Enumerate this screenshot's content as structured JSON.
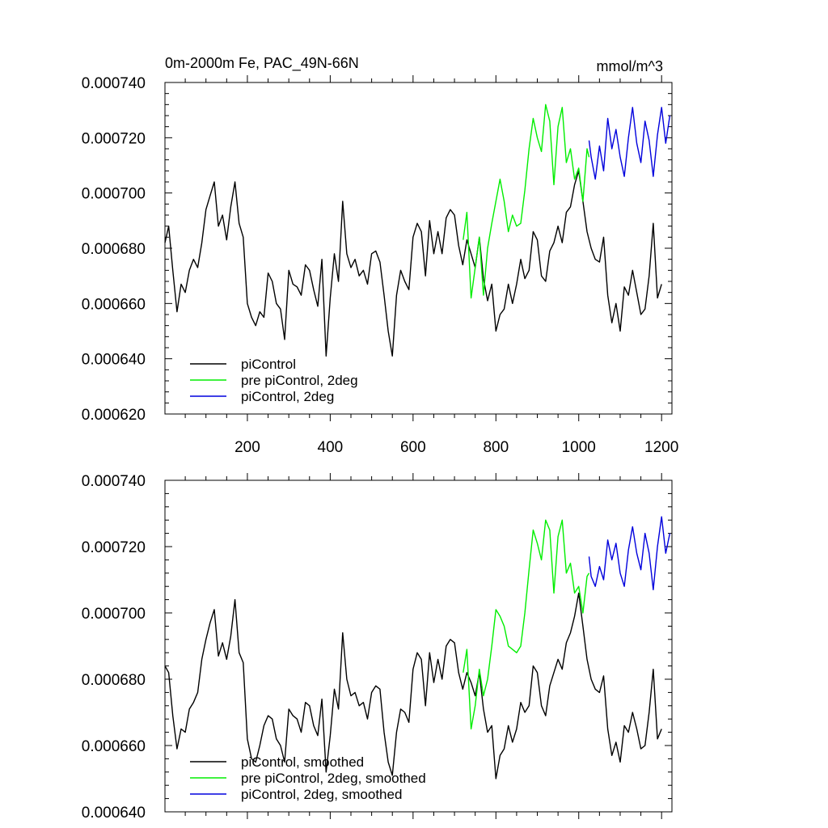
{
  "colors": {
    "piControl": "#000000",
    "pre_piControl_2deg": "#00ee00",
    "piControl_2deg": "#0000dd"
  },
  "top": {
    "title_left": "0m-2000m Fe, PAC_49N-66N",
    "title_right": "mmol/m^3",
    "y_ticks": [
      "0.000620",
      "0.000640",
      "0.000660",
      "0.000680",
      "0.000700",
      "0.000720",
      "0.000740"
    ],
    "x_ticks": [
      "200",
      "400",
      "600",
      "800",
      "1000",
      "1200"
    ],
    "legend": [
      "piControl",
      "pre piControl, 2deg",
      "piControl, 2deg"
    ]
  },
  "bottom": {
    "y_ticks": [
      "0.000640",
      "0.000660",
      "0.000680",
      "0.000700",
      "0.000720",
      "0.000740"
    ],
    "legend": [
      "piControl, smoothed",
      "pre piControl, 2deg, smoothed",
      "piControl, 2deg, smoothed"
    ]
  },
  "chart_data": [
    {
      "type": "line",
      "title": "0m-2000m Fe, PAC_49N-66N",
      "units": "mmol/m^3",
      "xlim": [
        1,
        1225
      ],
      "ylim": [
        0.00062,
        0.00074
      ],
      "series": [
        {
          "name": "piControl",
          "color": "#000000",
          "x": [
            1,
            10,
            20,
            30,
            40,
            50,
            60,
            70,
            80,
            90,
            100,
            110,
            120,
            130,
            140,
            150,
            160,
            170,
            180,
            190,
            200,
            210,
            220,
            230,
            240,
            250,
            260,
            270,
            280,
            290,
            300,
            310,
            320,
            330,
            340,
            350,
            360,
            370,
            380,
            390,
            400,
            410,
            420,
            430,
            440,
            450,
            460,
            470,
            480,
            490,
            500,
            510,
            520,
            530,
            540,
            550,
            560,
            570,
            580,
            590,
            600,
            610,
            620,
            630,
            640,
            650,
            660,
            670,
            680,
            690,
            700,
            710,
            720,
            730,
            740,
            750,
            760,
            770,
            780,
            790,
            800,
            810,
            820,
            830,
            840,
            850,
            860,
            870,
            880,
            890,
            900,
            910,
            920,
            930,
            940,
            950,
            960,
            970,
            980,
            990,
            1000,
            1010,
            1020,
            1030,
            1040,
            1050,
            1060,
            1070,
            1080,
            1090,
            1100,
            1110,
            1120,
            1130,
            1140,
            1150,
            1160,
            1170,
            1180,
            1190,
            1200
          ],
          "values": [
            0.000682,
            0.000688,
            0.000672,
            0.000657,
            0.000667,
            0.000664,
            0.000672,
            0.000676,
            0.000673,
            0.000682,
            0.000694,
            0.000699,
            0.000704,
            0.000688,
            0.000692,
            0.000683,
            0.000695,
            0.000704,
            0.000689,
            0.000684,
            0.00066,
            0.000655,
            0.000652,
            0.000657,
            0.000655,
            0.000671,
            0.000668,
            0.00066,
            0.000658,
            0.000647,
            0.000672,
            0.000667,
            0.000666,
            0.000663,
            0.000674,
            0.000672,
            0.000665,
            0.000659,
            0.000676,
            0.000641,
            0.000662,
            0.000678,
            0.000668,
            0.000697,
            0.000678,
            0.000673,
            0.000676,
            0.00067,
            0.000672,
            0.000667,
            0.000678,
            0.000679,
            0.000675,
            0.000663,
            0.00065,
            0.000641,
            0.000663,
            0.000672,
            0.000668,
            0.000665,
            0.000684,
            0.000689,
            0.000686,
            0.00067,
            0.00069,
            0.000678,
            0.000686,
            0.000678,
            0.000691,
            0.000694,
            0.000692,
            0.000681,
            0.000674,
            0.000683,
            0.000678,
            0.000673,
            0.000684,
            0.000669,
            0.000661,
            0.000667,
            0.00065,
            0.000656,
            0.000658,
            0.000667,
            0.00066,
            0.000667,
            0.000676,
            0.000669,
            0.000672,
            0.000686,
            0.000683,
            0.00067,
            0.000668,
            0.000679,
            0.000682,
            0.000688,
            0.000682,
            0.000693,
            0.000695,
            0.000703,
            0.000708,
            0.000697,
            0.000686,
            0.00068,
            0.000676,
            0.000675,
            0.000684,
            0.000663,
            0.000653,
            0.00066,
            0.00065,
            0.000666,
            0.000663,
            0.000672,
            0.000664,
            0.000656,
            0.000658,
            0.00067,
            0.000689,
            0.000662,
            0.000667
          ]
        },
        {
          "name": "pre piControl, 2deg",
          "color": "#00ee00",
          "x": [
            721,
            730,
            740,
            750,
            760,
            770,
            780,
            790,
            800,
            810,
            820,
            830,
            840,
            850,
            860,
            870,
            880,
            890,
            900,
            910,
            920,
            930,
            940,
            950,
            960,
            970,
            980,
            990,
            1000,
            1010,
            1020,
            1025
          ],
          "values": [
            0.000683,
            0.000693,
            0.000662,
            0.000673,
            0.000684,
            0.000663,
            0.00068,
            0.000689,
            0.000697,
            0.000705,
            0.000697,
            0.000686,
            0.000692,
            0.000688,
            0.000689,
            0.000701,
            0.000716,
            0.000727,
            0.00072,
            0.000715,
            0.000732,
            0.000726,
            0.000703,
            0.000724,
            0.000731,
            0.000711,
            0.000716,
            0.000705,
            0.000709,
            0.000697,
            0.000716,
            0.000713
          ]
        },
        {
          "name": "piControl, 2deg",
          "color": "#0000dd",
          "x": [
            1025,
            1030,
            1040,
            1050,
            1060,
            1070,
            1080,
            1090,
            1100,
            1110,
            1120,
            1130,
            1140,
            1150,
            1160,
            1170,
            1180,
            1190,
            1200,
            1210,
            1220
          ],
          "values": [
            0.000719,
            0.000713,
            0.000705,
            0.000717,
            0.000708,
            0.000727,
            0.000716,
            0.000723,
            0.000713,
            0.000706,
            0.00072,
            0.000731,
            0.000718,
            0.000711,
            0.000726,
            0.000719,
            0.000706,
            0.000721,
            0.000731,
            0.000718,
            0.000728
          ]
        }
      ]
    },
    {
      "type": "line",
      "xlim": [
        1,
        1225
      ],
      "ylim": [
        0.00064,
        0.00074
      ],
      "series": [
        {
          "name": "piControl, smoothed",
          "color": "#000000",
          "x": [
            1,
            10,
            20,
            30,
            40,
            50,
            60,
            70,
            80,
            90,
            100,
            110,
            120,
            130,
            140,
            150,
            160,
            170,
            180,
            190,
            200,
            210,
            220,
            230,
            240,
            250,
            260,
            270,
            280,
            290,
            300,
            310,
            320,
            330,
            340,
            350,
            360,
            370,
            380,
            390,
            400,
            410,
            420,
            430,
            440,
            450,
            460,
            470,
            480,
            490,
            500,
            510,
            520,
            530,
            540,
            550,
            560,
            570,
            580,
            590,
            600,
            610,
            620,
            630,
            640,
            650,
            660,
            670,
            680,
            690,
            700,
            710,
            720,
            730,
            740,
            750,
            760,
            770,
            780,
            790,
            800,
            810,
            820,
            830,
            840,
            850,
            860,
            870,
            880,
            890,
            900,
            910,
            920,
            930,
            940,
            950,
            960,
            970,
            980,
            990,
            1000,
            1010,
            1020,
            1030,
            1040,
            1050,
            1060,
            1070,
            1080,
            1090,
            1100,
            1110,
            1120,
            1130,
            1140,
            1150,
            1160,
            1170,
            1180,
            1190,
            1200
          ],
          "values": [
            0.000684,
            0.000682,
            0.000669,
            0.000659,
            0.000665,
            0.000664,
            0.000671,
            0.000673,
            0.000676,
            0.000686,
            0.000692,
            0.000697,
            0.000701,
            0.000687,
            0.000691,
            0.000686,
            0.000693,
            0.000704,
            0.000688,
            0.000685,
            0.000662,
            0.000656,
            0.000655,
            0.00066,
            0.000666,
            0.000669,
            0.000668,
            0.000662,
            0.00066,
            0.000655,
            0.000671,
            0.000669,
            0.000668,
            0.000664,
            0.000673,
            0.000672,
            0.000666,
            0.000663,
            0.000674,
            0.000652,
            0.000663,
            0.000677,
            0.000671,
            0.000694,
            0.00068,
            0.000675,
            0.000676,
            0.000672,
            0.000673,
            0.000668,
            0.000676,
            0.000678,
            0.000677,
            0.000664,
            0.000655,
            0.000651,
            0.000664,
            0.000671,
            0.00067,
            0.000667,
            0.000683,
            0.000688,
            0.000686,
            0.000672,
            0.000688,
            0.000679,
            0.000686,
            0.00068,
            0.00069,
            0.000692,
            0.000691,
            0.000682,
            0.000677,
            0.000682,
            0.000679,
            0.000675,
            0.000682,
            0.000671,
            0.000664,
            0.000666,
            0.00065,
            0.000657,
            0.000659,
            0.000666,
            0.000661,
            0.000665,
            0.000673,
            0.00067,
            0.000672,
            0.000684,
            0.000682,
            0.000672,
            0.000669,
            0.000678,
            0.000682,
            0.000686,
            0.000683,
            0.000691,
            0.000694,
            0.000699,
            0.000706,
            0.000696,
            0.000686,
            0.00068,
            0.000677,
            0.000676,
            0.000681,
            0.000665,
            0.000657,
            0.000661,
            0.000655,
            0.000666,
            0.000664,
            0.00067,
            0.000665,
            0.000659,
            0.00066,
            0.00067,
            0.000683,
            0.000662,
            0.000665
          ]
        },
        {
          "name": "pre piControl, 2deg, smoothed",
          "color": "#00ee00",
          "x": [
            721,
            730,
            740,
            750,
            760,
            770,
            780,
            790,
            800,
            810,
            820,
            830,
            840,
            850,
            860,
            870,
            880,
            890,
            900,
            910,
            920,
            930,
            940,
            950,
            960,
            970,
            980,
            990,
            1000,
            1010,
            1020,
            1025
          ],
          "values": [
            0.000682,
            0.000689,
            0.000665,
            0.000672,
            0.000683,
            0.000675,
            0.00068,
            0.00069,
            0.000701,
            0.000699,
            0.000696,
            0.00069,
            0.000689,
            0.000688,
            0.00069,
            0.0007,
            0.000713,
            0.000725,
            0.000721,
            0.000716,
            0.000728,
            0.000725,
            0.000706,
            0.000723,
            0.000728,
            0.000712,
            0.000715,
            0.000706,
            0.000708,
            0.0007,
            0.000711,
            0.000712
          ]
        },
        {
          "name": "piControl, 2deg, smoothed",
          "color": "#0000dd",
          "x": [
            1025,
            1030,
            1040,
            1050,
            1060,
            1070,
            1080,
            1090,
            1100,
            1110,
            1120,
            1130,
            1140,
            1150,
            1160,
            1170,
            1180,
            1190,
            1200,
            1210,
            1220
          ],
          "values": [
            0.000717,
            0.000711,
            0.000708,
            0.000714,
            0.00071,
            0.000722,
            0.000716,
            0.000721,
            0.000712,
            0.000708,
            0.000719,
            0.000726,
            0.000718,
            0.000713,
            0.000724,
            0.000718,
            0.000707,
            0.00072,
            0.000729,
            0.000718,
            0.000724
          ]
        }
      ]
    }
  ]
}
